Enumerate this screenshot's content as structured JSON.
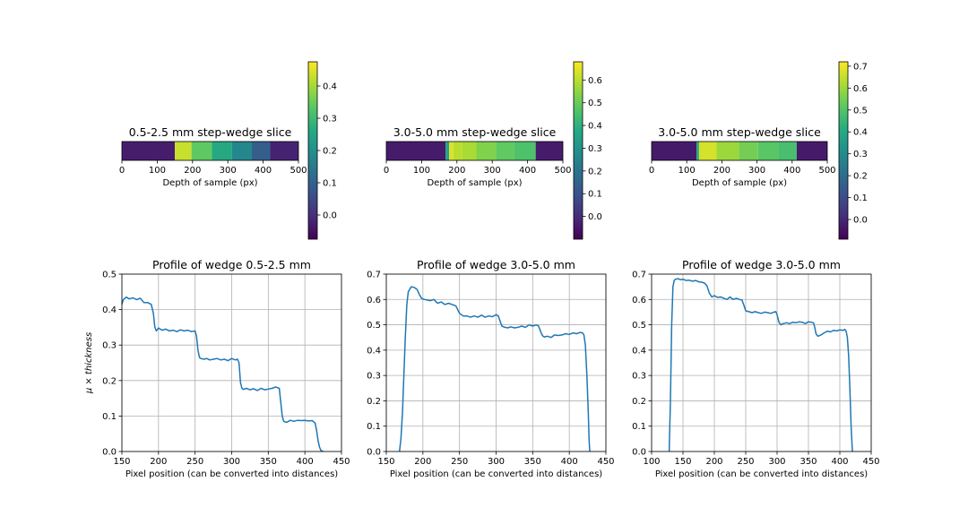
{
  "colors": {
    "line": "#1f77b4",
    "grid": "#b0b0b0",
    "colormap": "viridis"
  },
  "chart_data": [
    {
      "type": "heatmap",
      "title": "0.5-2.5 mm step-wedge slice",
      "xlabel": "Depth of sample (px)",
      "xlim": [
        0,
        500
      ],
      "xticks": [
        "0",
        "100",
        "200",
        "300",
        "400",
        "500"
      ],
      "colorbar": {
        "range": [
          -0.075,
          0.475
        ],
        "ticks": [
          "0.0",
          "0.1",
          "0.2",
          "0.3",
          "0.4"
        ]
      },
      "segments": [
        {
          "from": 0,
          "to": 150,
          "value": -0.03
        },
        {
          "from": 150,
          "to": 197,
          "value": 0.43
        },
        {
          "from": 197,
          "to": 255,
          "value": 0.34
        },
        {
          "from": 255,
          "to": 312,
          "value": 0.26
        },
        {
          "from": 312,
          "to": 368,
          "value": 0.18
        },
        {
          "from": 368,
          "to": 420,
          "value": 0.09
        },
        {
          "from": 420,
          "to": 500,
          "value": -0.02
        }
      ]
    },
    {
      "type": "heatmap",
      "title": "3.0-5.0 mm step-wedge slice",
      "xlabel": "Depth of sample (px)",
      "xlim": [
        0,
        500
      ],
      "xticks": [
        "0",
        "100",
        "200",
        "300",
        "400",
        "500"
      ],
      "colorbar": {
        "range": [
          -0.1,
          0.68
        ],
        "ticks": [
          "0.0",
          "0.1",
          "0.2",
          "0.3",
          "0.4",
          "0.5",
          "0.6"
        ]
      },
      "segments": [
        {
          "from": 0,
          "to": 168,
          "value": -0.04
        },
        {
          "from": 168,
          "to": 178,
          "value": 0.35
        },
        {
          "from": 178,
          "to": 190,
          "value": 0.64
        },
        {
          "from": 190,
          "to": 215,
          "value": 0.6
        },
        {
          "from": 215,
          "to": 255,
          "value": 0.58
        },
        {
          "from": 255,
          "to": 310,
          "value": 0.53
        },
        {
          "from": 310,
          "to": 362,
          "value": 0.49
        },
        {
          "from": 362,
          "to": 423,
          "value": 0.46
        },
        {
          "from": 423,
          "to": 500,
          "value": -0.04
        }
      ]
    },
    {
      "type": "heatmap",
      "title": "3.0-5.0 mm step-wedge slice",
      "xlabel": "Depth of sample (px)",
      "xlim": [
        0,
        500
      ],
      "xticks": [
        "0",
        "100",
        "200",
        "300",
        "400",
        "500"
      ],
      "colorbar": {
        "range": [
          -0.09,
          0.72
        ],
        "ticks": [
          "0.0",
          "0.1",
          "0.2",
          "0.3",
          "0.4",
          "0.5",
          "0.6",
          "0.7"
        ]
      },
      "segments": [
        {
          "from": 0,
          "to": 128,
          "value": -0.03
        },
        {
          "from": 128,
          "to": 135,
          "value": 0.4
        },
        {
          "from": 135,
          "to": 185,
          "value": 0.67
        },
        {
          "from": 185,
          "to": 248,
          "value": 0.6
        },
        {
          "from": 248,
          "to": 303,
          "value": 0.55
        },
        {
          "from": 303,
          "to": 360,
          "value": 0.51
        },
        {
          "from": 360,
          "to": 413,
          "value": 0.48
        },
        {
          "from": 413,
          "to": 500,
          "value": -0.03
        }
      ]
    },
    {
      "type": "line",
      "title": "Profile of wedge 0.5-2.5 mm",
      "xlabel": "Pixel position (can be converted into distances)",
      "ylabel": "μ × thickness",
      "xlim": [
        150,
        450
      ],
      "ylim": [
        0,
        0.5
      ],
      "xticks": [
        "150",
        "200",
        "250",
        "300",
        "350",
        "400",
        "450"
      ],
      "yticks": [
        "0.0",
        "0.1",
        "0.2",
        "0.3",
        "0.4",
        "0.5"
      ],
      "grid": true,
      "series": [
        {
          "x": [
            150,
            152,
            156,
            160,
            165,
            170,
            175,
            180,
            185,
            190,
            193,
            195,
            197,
            200,
            205,
            210,
            215,
            220,
            225,
            230,
            235,
            240,
            245,
            250,
            252,
            254,
            256,
            258,
            262,
            266,
            270,
            275,
            280,
            285,
            290,
            295,
            300,
            305,
            308,
            310,
            312,
            314,
            316,
            320,
            325,
            330,
            335,
            340,
            345,
            350,
            355,
            360,
            365,
            367,
            369,
            371,
            375,
            380,
            385,
            390,
            395,
            400,
            405,
            410,
            414,
            416,
            418,
            420,
            422,
            425
          ],
          "y": [
            0.415,
            0.428,
            0.435,
            0.43,
            0.433,
            0.428,
            0.432,
            0.42,
            0.42,
            0.415,
            0.39,
            0.35,
            0.34,
            0.348,
            0.342,
            0.345,
            0.34,
            0.342,
            0.338,
            0.343,
            0.34,
            0.342,
            0.338,
            0.34,
            0.325,
            0.285,
            0.265,
            0.262,
            0.26,
            0.262,
            0.258,
            0.26,
            0.262,
            0.258,
            0.26,
            0.256,
            0.262,
            0.258,
            0.26,
            0.25,
            0.195,
            0.178,
            0.175,
            0.178,
            0.174,
            0.177,
            0.172,
            0.178,
            0.174,
            0.176,
            0.178,
            0.182,
            0.178,
            0.14,
            0.1,
            0.085,
            0.082,
            0.088,
            0.085,
            0.088,
            0.087,
            0.088,
            0.086,
            0.087,
            0.08,
            0.06,
            0.03,
            0.012,
            0.003,
            0.0
          ]
        }
      ]
    },
    {
      "type": "line",
      "title": "Profile of wedge 3.0-5.0 mm",
      "xlabel": "Pixel position (can be converted into distances)",
      "xlim": [
        150,
        450
      ],
      "ylim": [
        0,
        0.7
      ],
      "xticks": [
        "150",
        "200",
        "250",
        "300",
        "350",
        "400",
        "450"
      ],
      "yticks": [
        "0.0",
        "0.1",
        "0.2",
        "0.3",
        "0.4",
        "0.5",
        "0.6",
        "0.7"
      ],
      "grid": true,
      "series": [
        {
          "x": [
            168,
            170,
            172,
            174,
            176,
            178,
            180,
            184,
            188,
            192,
            195,
            198,
            202,
            206,
            210,
            215,
            220,
            225,
            230,
            235,
            240,
            245,
            250,
            255,
            260,
            265,
            270,
            275,
            280,
            285,
            290,
            295,
            300,
            303,
            306,
            308,
            312,
            316,
            320,
            325,
            330,
            335,
            340,
            345,
            350,
            355,
            358,
            360,
            362,
            364,
            366,
            370,
            375,
            380,
            385,
            390,
            395,
            400,
            405,
            410,
            415,
            418,
            420,
            422,
            424,
            426,
            427,
            428
          ],
          "y": [
            0.0,
            0.05,
            0.15,
            0.3,
            0.45,
            0.58,
            0.63,
            0.65,
            0.648,
            0.64,
            0.62,
            0.605,
            0.6,
            0.598,
            0.595,
            0.6,
            0.585,
            0.59,
            0.58,
            0.585,
            0.58,
            0.575,
            0.545,
            0.535,
            0.535,
            0.53,
            0.535,
            0.53,
            0.538,
            0.53,
            0.535,
            0.532,
            0.54,
            0.535,
            0.51,
            0.495,
            0.49,
            0.488,
            0.492,
            0.488,
            0.49,
            0.495,
            0.49,
            0.5,
            0.495,
            0.5,
            0.495,
            0.48,
            0.465,
            0.455,
            0.452,
            0.455,
            0.45,
            0.46,
            0.458,
            0.46,
            0.465,
            0.462,
            0.468,
            0.465,
            0.47,
            0.468,
            0.46,
            0.42,
            0.3,
            0.15,
            0.05,
            0.0
          ]
        }
      ]
    },
    {
      "type": "line",
      "title": "Profile of wedge 3.0-5.0 mm",
      "xlabel": "Pixel position (can be converted into distances)",
      "xlim": [
        100,
        450
      ],
      "ylim": [
        0,
        0.7
      ],
      "xticks": [
        "100",
        "150",
        "200",
        "250",
        "300",
        "350",
        "400",
        "450"
      ],
      "yticks": [
        "0.0",
        "0.1",
        "0.2",
        "0.3",
        "0.4",
        "0.5",
        "0.6",
        "0.7"
      ],
      "grid": true,
      "series": [
        {
          "x": [
            128,
            130,
            132,
            134,
            136,
            138,
            142,
            146,
            150,
            155,
            160,
            165,
            170,
            175,
            180,
            184,
            188,
            192,
            196,
            200,
            205,
            210,
            215,
            220,
            225,
            230,
            235,
            240,
            244,
            247,
            250,
            255,
            260,
            265,
            270,
            275,
            280,
            285,
            290,
            295,
            298,
            300,
            303,
            306,
            310,
            315,
            320,
            325,
            330,
            335,
            340,
            345,
            350,
            355,
            358,
            360,
            362,
            365,
            370,
            375,
            380,
            385,
            390,
            395,
            400,
            405,
            408,
            410,
            412,
            414,
            416,
            418,
            420
          ],
          "y": [
            0.0,
            0.2,
            0.5,
            0.65,
            0.675,
            0.68,
            0.682,
            0.678,
            0.68,
            0.675,
            0.676,
            0.672,
            0.675,
            0.67,
            0.668,
            0.665,
            0.655,
            0.625,
            0.61,
            0.615,
            0.608,
            0.61,
            0.605,
            0.6,
            0.61,
            0.6,
            0.605,
            0.6,
            0.598,
            0.578,
            0.555,
            0.552,
            0.548,
            0.552,
            0.548,
            0.545,
            0.55,
            0.548,
            0.545,
            0.55,
            0.552,
            0.54,
            0.51,
            0.5,
            0.505,
            0.508,
            0.505,
            0.51,
            0.508,
            0.512,
            0.51,
            0.505,
            0.512,
            0.51,
            0.508,
            0.49,
            0.465,
            0.455,
            0.46,
            0.468,
            0.475,
            0.472,
            0.478,
            0.476,
            0.48,
            0.478,
            0.482,
            0.475,
            0.45,
            0.38,
            0.25,
            0.1,
            0.0
          ]
        }
      ]
    }
  ]
}
